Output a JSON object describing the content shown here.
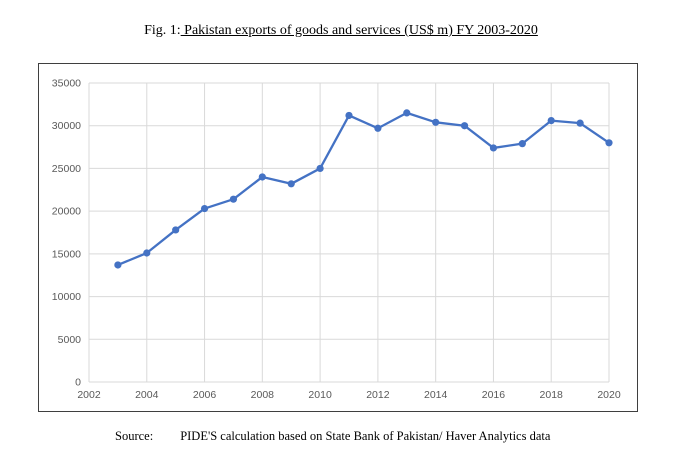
{
  "figure": {
    "title_prefix": "Fig. 1:",
    "title_main": " Pakistan exports of goods and services (US$ m) FY 2003-2020",
    "source_label": "Source:",
    "source_text": "PIDE'S calculation based on State Bank of Pakistan/ Haver Analytics data"
  },
  "chart_data": {
    "type": "line",
    "title": "Fig. 1: Pakistan exports of goods and services (US$ m) FY 2003-2020",
    "series_name": "Exports of goods and services (US$ m)",
    "x": [
      2003,
      2004,
      2005,
      2006,
      2007,
      2008,
      2009,
      2010,
      2011,
      2012,
      2013,
      2014,
      2015,
      2016,
      2017,
      2018,
      2019,
      2020
    ],
    "values": [
      13700,
      15100,
      17800,
      20300,
      21400,
      24000,
      23200,
      25000,
      31200,
      29700,
      31500,
      30400,
      30000,
      27400,
      27900,
      30600,
      30300,
      28000
    ],
    "xlabel": "",
    "ylabel": "",
    "xlim": [
      2002,
      2020
    ],
    "ylim": [
      0,
      35000
    ],
    "x_ticks": [
      2002,
      2004,
      2006,
      2008,
      2010,
      2012,
      2014,
      2016,
      2018,
      2020
    ],
    "y_ticks": [
      0,
      5000,
      10000,
      15000,
      20000,
      25000,
      30000,
      35000
    ],
    "grid": true,
    "legend": "none",
    "line_color": "#4472C4",
    "marker": "circle",
    "marker_radius": 3.6,
    "line_width": 2.3,
    "gridline_color": "#d9d9d9",
    "axis_label_color": "#595959",
    "plot_background": "#ffffff"
  }
}
